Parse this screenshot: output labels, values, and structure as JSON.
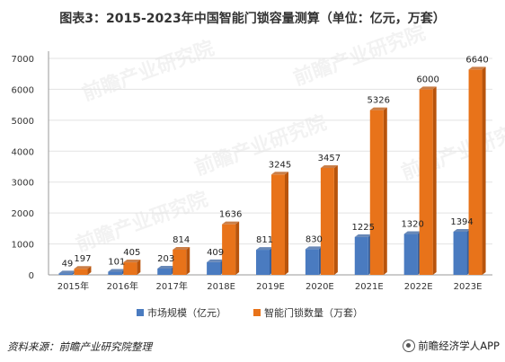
{
  "title": "图表3：2015-2023年中国智能门锁容量测算（单位：亿元，万套）",
  "source": "资料来源：前瞻产业研究院整理",
  "brand": "前瞻经济学人APP",
  "watermark": "前瞻产业研究院",
  "colors": {
    "series_market": "#4a7bc0",
    "series_market_dark": "#35609f",
    "series_volume": "#e8731a",
    "series_volume_dark": "#b8540c",
    "axis": "#999999",
    "grid": "#e3e3e3"
  },
  "chart_data": {
    "type": "bar",
    "style": "3d-clustered-column",
    "categories": [
      "2015年",
      "2016年",
      "2017年",
      "2018E",
      "2019E",
      "2020E",
      "2021E",
      "2022E",
      "2023E"
    ],
    "series": [
      {
        "name": "市场规模（亿元）",
        "values": [
          49,
          101,
          203,
          409,
          811,
          830,
          1225,
          1320,
          1394
        ]
      },
      {
        "name": "智能门锁数量（万套）",
        "values": [
          197,
          405,
          814,
          1636,
          3245,
          3457,
          5326,
          6000,
          6640
        ]
      }
    ],
    "y_ticks": [
      "0",
      "1000",
      "2000",
      "3000",
      "4000",
      "5000",
      "6000",
      "7000"
    ],
    "ylim": [
      0,
      7000
    ],
    "data_labels": true,
    "legend_position": "bottom"
  }
}
